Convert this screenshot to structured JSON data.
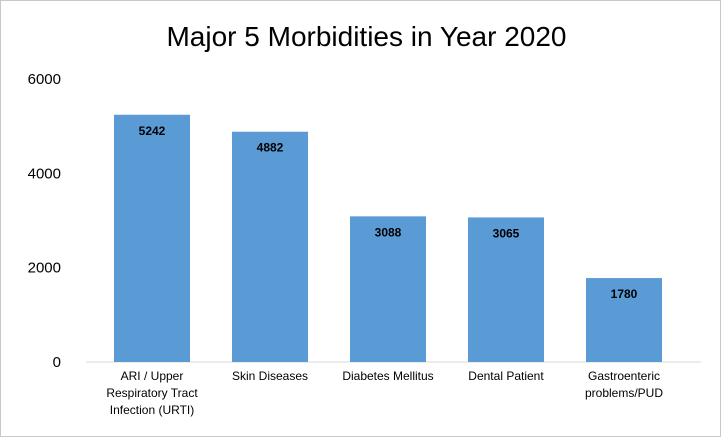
{
  "chart_data": {
    "type": "bar",
    "title": "Major 5 Morbidities in Year 2020",
    "categories": [
      [
        "ARI / Upper",
        "Respiratory Tract",
        "Infection (URTI)"
      ],
      [
        "Skin Diseases"
      ],
      [
        "Diabetes Mellitus"
      ],
      [
        "Dental Patient"
      ],
      [
        "Gastroenteric",
        "problems/PUD"
      ]
    ],
    "values": [
      5242,
      4882,
      3088,
      3065,
      1780
    ],
    "data_labels": [
      "5242",
      "4882",
      "3088",
      "3065",
      "1780"
    ],
    "yticks": [
      0,
      2000,
      4000,
      6000
    ],
    "ylim": [
      0,
      6000
    ],
    "xlabel": "",
    "ylabel": "",
    "grid": false,
    "legend": "none",
    "bar_color": "#5b9bd5"
  }
}
